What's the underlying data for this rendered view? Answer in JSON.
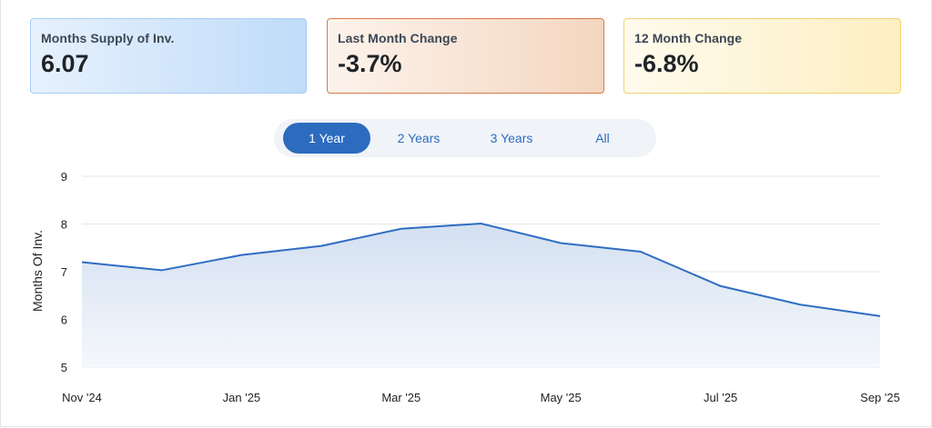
{
  "cards": [
    {
      "label": "Months Supply of Inv.",
      "value": "6.07"
    },
    {
      "label": "Last Month Change",
      "value": "-3.7%"
    },
    {
      "label": "12 Month Change",
      "value": "-6.8%"
    }
  ],
  "range_tabs": {
    "items": [
      "1 Year",
      "2 Years",
      "3 Years",
      "All"
    ],
    "selected": "1 Year"
  },
  "colors": {
    "line": "#2f6dc3",
    "area_top": "#d3e0f1",
    "area_bottom": "#f5f8fc",
    "grid": "#e5e5e5",
    "tab_active": "#2d6bbf"
  },
  "chart_data": {
    "type": "area",
    "ylabel": "Months Of Inv.",
    "ylim": [
      5,
      9
    ],
    "yticks": [
      5,
      6,
      7,
      8,
      9
    ],
    "x": [
      "Nov '24",
      "Dec '24",
      "Jan '25",
      "Feb '25",
      "Mar '25",
      "Apr '25",
      "May '25",
      "Jun '25",
      "Jul '25",
      "Aug '25",
      "Sep '25"
    ],
    "xtick_labels": [
      "Nov '24",
      "Jan '25",
      "Mar '25",
      "May '25",
      "Jul '25",
      "Sep '25"
    ],
    "series": [
      {
        "values": [
          7.2,
          7.03,
          7.35,
          7.54,
          7.9,
          8.01,
          7.6,
          7.42,
          6.7,
          6.31,
          6.07
        ]
      }
    ],
    "grid": true,
    "legend": "none"
  }
}
